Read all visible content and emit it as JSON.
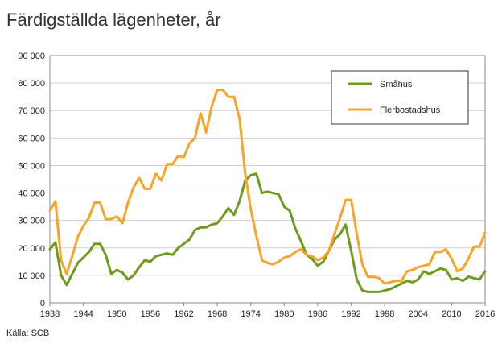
{
  "chart_data": {
    "type": "line",
    "title": "Färdigställda lägenheter, år",
    "source": "Källa: SCB",
    "xlabel": "",
    "ylabel": "",
    "xlim": [
      1938,
      2016
    ],
    "ylim": [
      0,
      90000
    ],
    "x_ticks": [
      1938,
      1944,
      1950,
      1956,
      1962,
      1968,
      1974,
      1980,
      1986,
      1992,
      1998,
      2004,
      2010,
      2016
    ],
    "y_ticks": [
      0,
      10000,
      20000,
      30000,
      40000,
      50000,
      60000,
      70000,
      80000,
      90000
    ],
    "y_tick_labels": [
      "0",
      "10 000",
      "20 000",
      "30 000",
      "40 000",
      "50 000",
      "60 000",
      "70 000",
      "80 000",
      "90 000"
    ],
    "grid": "horizontal",
    "legend_position": "top-right",
    "x": [
      1938,
      1939,
      1940,
      1941,
      1942,
      1943,
      1944,
      1945,
      1946,
      1947,
      1948,
      1949,
      1950,
      1951,
      1952,
      1953,
      1954,
      1955,
      1956,
      1957,
      1958,
      1959,
      1960,
      1961,
      1962,
      1963,
      1964,
      1965,
      1966,
      1967,
      1968,
      1969,
      1970,
      1971,
      1972,
      1973,
      1974,
      1975,
      1976,
      1977,
      1978,
      1979,
      1980,
      1981,
      1982,
      1983,
      1984,
      1985,
      1986,
      1987,
      1988,
      1989,
      1990,
      1991,
      1992,
      1993,
      1994,
      1995,
      1996,
      1997,
      1998,
      1999,
      2000,
      2001,
      2002,
      2003,
      2004,
      2005,
      2006,
      2007,
      2008,
      2009,
      2010,
      2011,
      2012,
      2013,
      2014,
      2015,
      2016
    ],
    "series": [
      {
        "name": "Småhus",
        "color": "#6e9a1e",
        "values": [
          19500,
          22000,
          10000,
          6500,
          10500,
          14500,
          16500,
          18500,
          21500,
          21500,
          17500,
          10500,
          12000,
          11000,
          8500,
          10000,
          13000,
          15500,
          15000,
          17000,
          17500,
          18000,
          17500,
          20000,
          21500,
          23000,
          26500,
          27500,
          27500,
          28500,
          29000,
          31500,
          34500,
          32000,
          37000,
          44500,
          46500,
          47000,
          40000,
          40500,
          40000,
          39500,
          35000,
          33500,
          27000,
          22500,
          17500,
          16000,
          13500,
          15000,
          19000,
          23000,
          25000,
          28500,
          19000,
          8500,
          4500,
          4000,
          4000,
          4000,
          4500,
          5000,
          6000,
          7000,
          8000,
          7500,
          8500,
          11500,
          10500,
          11500,
          12500,
          12000,
          8500,
          9000,
          8000,
          9500,
          9000,
          8500,
          11500
        ]
      },
      {
        "name": "Flerbostadshus",
        "color": "#f7a42a",
        "values": [
          33500,
          37000,
          15500,
          10500,
          17000,
          24000,
          28000,
          31000,
          36500,
          36500,
          30500,
          30500,
          31500,
          29000,
          36500,
          42000,
          45500,
          41500,
          41500,
          47000,
          44500,
          50500,
          50500,
          53500,
          53000,
          58000,
          60000,
          69000,
          62000,
          71500,
          77500,
          77500,
          75000,
          75000,
          67000,
          47000,
          34000,
          24500,
          15500,
          14500,
          14000,
          15000,
          16500,
          17000,
          18500,
          19500,
          17500,
          17000,
          15500,
          16500,
          19000,
          25000,
          31000,
          37500,
          37500,
          25000,
          14000,
          9500,
          9500,
          9000,
          7000,
          7500,
          8000,
          8000,
          11500,
          12000,
          13000,
          13500,
          14000,
          18500,
          18500,
          19500,
          16000,
          11500,
          12500,
          16000,
          20500,
          20500,
          25500
        ]
      }
    ]
  }
}
